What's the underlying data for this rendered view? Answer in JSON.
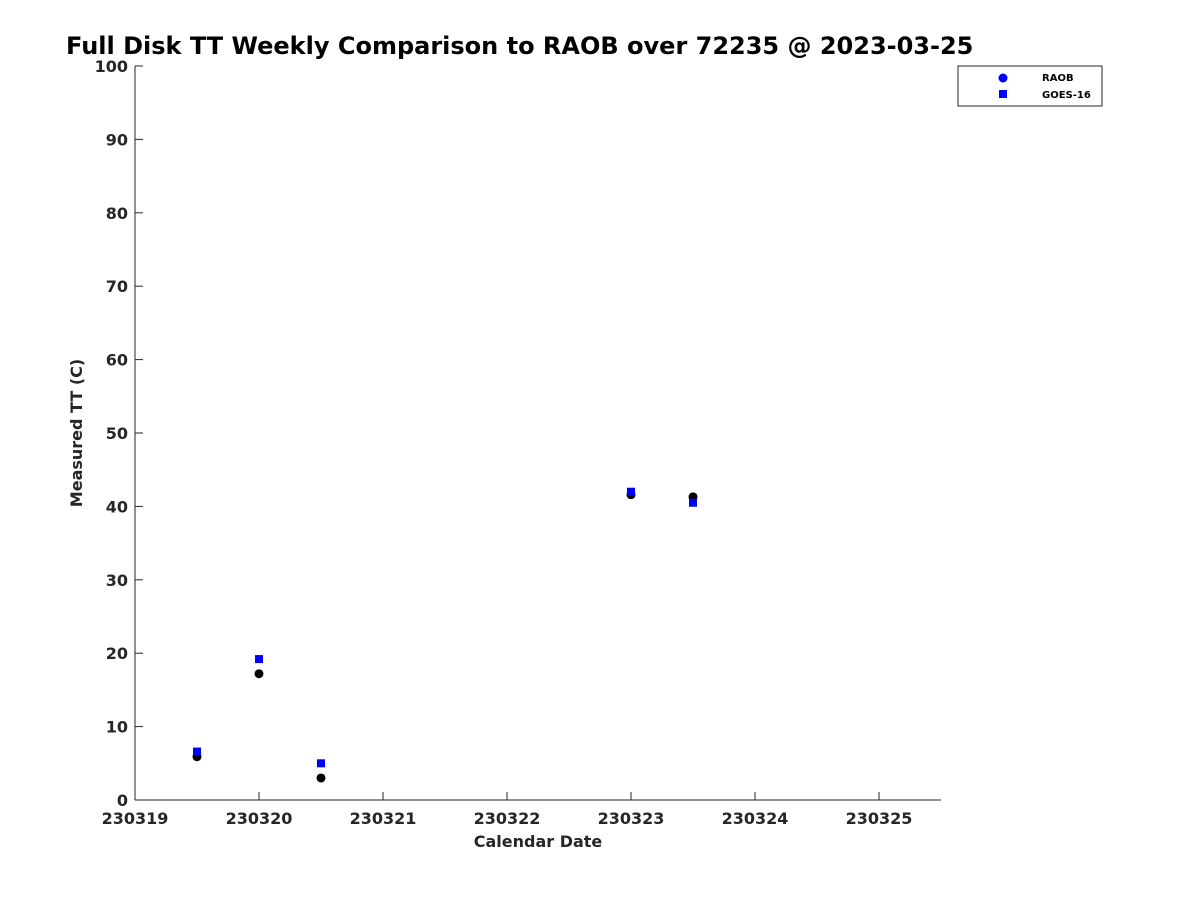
{
  "chart_data": {
    "type": "scatter",
    "title": "Full Disk TT Weekly Comparison to RAOB over 72235 @ 2023-03-25",
    "xlabel": "Calendar Date",
    "ylabel": "Measured TT (C)",
    "xlim": [
      230319,
      230325.5
    ],
    "ylim": [
      0,
      100
    ],
    "xticks": [
      230319,
      230320,
      230321,
      230322,
      230323,
      230324,
      230325
    ],
    "xtick_labels": [
      "230319",
      "230320",
      "230321",
      "230322",
      "230323",
      "230324",
      "230325"
    ],
    "yticks": [
      0,
      10,
      20,
      30,
      40,
      50,
      60,
      70,
      80,
      90,
      100
    ],
    "ytick_labels": [
      "0",
      "10",
      "20",
      "30",
      "40",
      "50",
      "60",
      "70",
      "80",
      "90",
      "100"
    ],
    "legend_position": "top-right",
    "series": [
      {
        "name": "RAOB",
        "marker": "circle",
        "color": "#000000",
        "legend_color": "#0000ff",
        "x": [
          230319.5,
          230320.0,
          230320.5,
          230323.0,
          230323.5
        ],
        "y": [
          5.9,
          17.2,
          3.0,
          41.6,
          41.3
        ]
      },
      {
        "name": "GOES-16",
        "marker": "square",
        "color": "#0000ff",
        "legend_color": "#0000ff",
        "x": [
          230319.5,
          230320.0,
          230320.5,
          230323.0,
          230323.5
        ],
        "y": [
          6.6,
          19.2,
          5.0,
          42.0,
          40.5
        ]
      }
    ]
  }
}
